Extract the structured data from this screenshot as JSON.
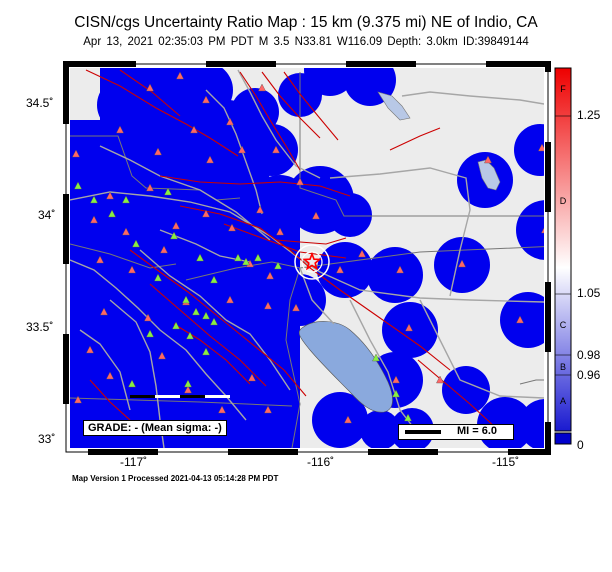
{
  "title": "CISN/cgs Uncertainty Ratio Map : 15 km (9.375 mi) NE of Indio, CA",
  "subtitle": "Apr 13, 2021 02:35:03 PM PDT   M 3.5   N33.81 W116.09   Depth: 3.0km   ID:39849144",
  "footer": "Map Version 1 Processed 2021-04-13 05:14:28 PM PDT",
  "axes": {
    "lon_labels": [
      "-117˚",
      "-116˚",
      "-115˚"
    ],
    "lat_labels": [
      "34.5˚",
      "34˚",
      "33.5˚",
      "33˚"
    ]
  },
  "grade_box": "GRADE: - (Mean sigma: -)",
  "mi_legend": "MI = 6.0",
  "color_scale": {
    "right_labels": [
      "1.25",
      "1.05",
      "0.98",
      "0.96",
      "0"
    ],
    "left_labels": [
      "F",
      "D",
      "C",
      "B",
      "A"
    ]
  },
  "colors": {
    "low_uncertainty": "#0000ee",
    "background": "#ececec",
    "faults": "#cc0000",
    "roads": "#a6a6a6",
    "water": "#8aa9dd",
    "seismic_station": "#ff6666",
    "strong_motion_station": "#88ee44",
    "epicenter": "#ff0000"
  },
  "icons": {
    "epicenter": "star-icon",
    "seismic_station": "red-triangle-icon",
    "strong_motion_station": "green-triangle-icon"
  }
}
